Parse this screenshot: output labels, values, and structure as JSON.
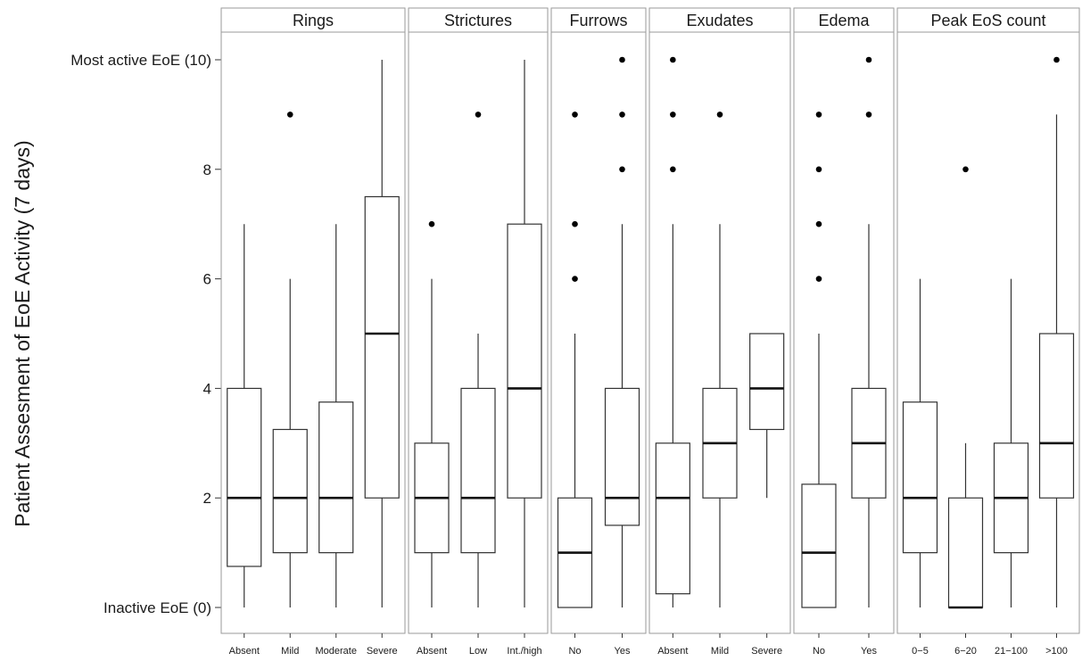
{
  "chart_data": {
    "type": "box",
    "ylabel": "Patient Assesment of EoE Activity (7 days)",
    "ylim": [
      0,
      10
    ],
    "yticks": [
      {
        "value": 0,
        "label": "Inactive EoE (0)"
      },
      {
        "value": 2,
        "label": "2"
      },
      {
        "value": 4,
        "label": "4"
      },
      {
        "value": 6,
        "label": "6"
      },
      {
        "value": 8,
        "label": "8"
      },
      {
        "value": 10,
        "label": "Most active EoE (10)"
      }
    ],
    "grid": false,
    "colors": {
      "box_fill": "#ffffff",
      "line": "#333333",
      "strip_fill": "#ffffff",
      "outlier": "#000000"
    },
    "panels": [
      {
        "title": "Rings",
        "groups": [
          {
            "label": "Absent",
            "whisker_low": 0,
            "q1": 0.75,
            "median": 2,
            "q3": 4,
            "whisker_high": 7,
            "outliers": []
          },
          {
            "label": "Mild",
            "whisker_low": 0,
            "q1": 1,
            "median": 2,
            "q3": 3.25,
            "whisker_high": 6,
            "outliers": [
              9
            ]
          },
          {
            "label": "Moderate",
            "whisker_low": 0,
            "q1": 1,
            "median": 2,
            "q3": 3.75,
            "whisker_high": 7,
            "outliers": []
          },
          {
            "label": "Severe",
            "whisker_low": 0,
            "q1": 2,
            "median": 5,
            "q3": 7.5,
            "whisker_high": 10,
            "outliers": []
          }
        ]
      },
      {
        "title": "Strictures",
        "groups": [
          {
            "label": "Absent",
            "whisker_low": 0,
            "q1": 1,
            "median": 2,
            "q3": 3,
            "whisker_high": 6,
            "outliers": [
              7
            ]
          },
          {
            "label": "Low",
            "whisker_low": 0,
            "q1": 1,
            "median": 2,
            "q3": 4,
            "whisker_high": 5,
            "outliers": [
              9
            ]
          },
          {
            "label": "Int./high",
            "whisker_low": 0,
            "q1": 2,
            "median": 4,
            "q3": 7,
            "whisker_high": 10,
            "outliers": []
          }
        ]
      },
      {
        "title": "Furrows",
        "groups": [
          {
            "label": "No",
            "whisker_low": 0,
            "q1": 0,
            "median": 1,
            "q3": 2,
            "whisker_high": 5,
            "outliers": [
              6,
              7,
              9
            ]
          },
          {
            "label": "Yes",
            "whisker_low": 0,
            "q1": 1.5,
            "median": 2,
            "q3": 4,
            "whisker_high": 7,
            "outliers": [
              8,
              9,
              10
            ]
          }
        ]
      },
      {
        "title": "Exudates",
        "groups": [
          {
            "label": "Absent",
            "whisker_low": 0,
            "q1": 0.25,
            "median": 2,
            "q3": 3,
            "whisker_high": 7,
            "outliers": [
              8,
              9,
              10
            ]
          },
          {
            "label": "Mild",
            "whisker_low": 0,
            "q1": 2,
            "median": 3,
            "q3": 4,
            "whisker_high": 7,
            "outliers": [
              9
            ]
          },
          {
            "label": "Severe",
            "whisker_low": 2,
            "q1": 3.25,
            "median": 4,
            "q3": 5,
            "whisker_high": 5,
            "outliers": []
          }
        ]
      },
      {
        "title": "Edema",
        "groups": [
          {
            "label": "No",
            "whisker_low": 0,
            "q1": 0,
            "median": 1,
            "q3": 2.25,
            "whisker_high": 5,
            "outliers": [
              6,
              7,
              8,
              9
            ]
          },
          {
            "label": "Yes",
            "whisker_low": 0,
            "q1": 2,
            "median": 3,
            "q3": 4,
            "whisker_high": 7,
            "outliers": [
              9,
              10
            ]
          }
        ]
      },
      {
        "title": "Peak EoS count",
        "groups": [
          {
            "label": "0−5",
            "whisker_low": 0,
            "q1": 1,
            "median": 2,
            "q3": 3.75,
            "whisker_high": 6,
            "outliers": []
          },
          {
            "label": "6−20",
            "whisker_low": 0,
            "q1": 0,
            "median": 0,
            "q3": 2,
            "whisker_high": 3,
            "outliers": [
              8
            ]
          },
          {
            "label": "21−100",
            "whisker_low": 0,
            "q1": 1,
            "median": 2,
            "q3": 3,
            "whisker_high": 6,
            "outliers": []
          },
          {
            "label": ">100",
            "whisker_low": 0,
            "q1": 2,
            "median": 3,
            "q3": 5,
            "whisker_high": 9,
            "outliers": [
              10
            ]
          }
        ]
      }
    ]
  }
}
